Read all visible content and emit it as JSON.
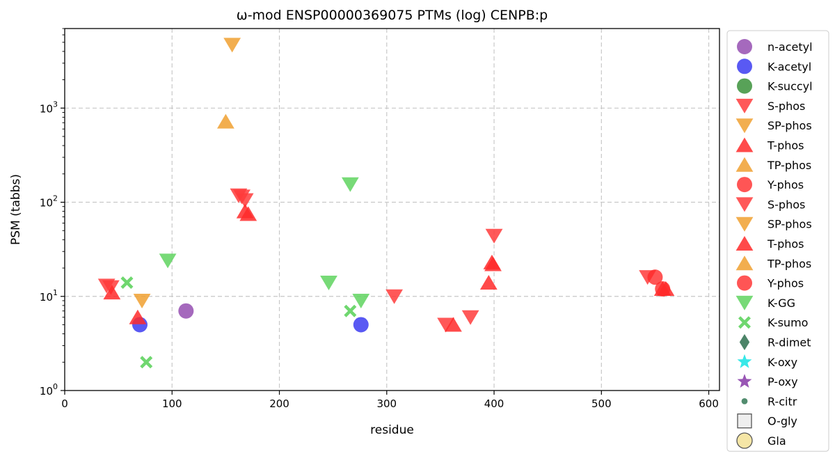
{
  "chart_data": {
    "type": "scatter",
    "title": "ω-mod ENSP00000369075 PTMs (log) CENPB:p",
    "xlabel": "residue",
    "ylabel": "PSM (tabbs)",
    "xlim": [
      0,
      610
    ],
    "ylim": [
      1,
      7000
    ],
    "yscale": "log",
    "grid": true,
    "legend_position": "outside-right",
    "x_ticks": [
      {
        "value": 0,
        "label": "0"
      },
      {
        "value": 100,
        "label": "100"
      },
      {
        "value": 200,
        "label": "200"
      },
      {
        "value": 300,
        "label": "300"
      },
      {
        "value": 400,
        "label": "400"
      },
      {
        "value": 500,
        "label": "500"
      },
      {
        "value": 600,
        "label": "600"
      }
    ],
    "y_ticks": [
      {
        "value": 1,
        "base": "10",
        "exp": "0"
      },
      {
        "value": 10,
        "base": "10",
        "exp": "1"
      },
      {
        "value": 100,
        "base": "10",
        "exp": "2"
      },
      {
        "value": 1000,
        "base": "10",
        "exp": "3"
      }
    ],
    "series": [
      {
        "name": "n-acetyl",
        "marker": "circle",
        "color": "#8e44ad",
        "points": [
          [
            113,
            7
          ]
        ]
      },
      {
        "name": "K-acetyl",
        "marker": "circle",
        "color": "#2f2ff0",
        "points": [
          [
            70,
            5
          ],
          [
            276,
            5
          ]
        ]
      },
      {
        "name": "K-succyl",
        "marker": "circle",
        "color": "#2e8b2e",
        "points": []
      },
      {
        "name": "S-phos",
        "marker": "triangle-down",
        "color": "#ff3b3b",
        "points": [
          [
            39,
            13
          ],
          [
            43,
            12.5
          ],
          [
            162,
            118
          ],
          [
            165,
            115
          ],
          [
            168,
            105
          ],
          [
            307,
            10
          ],
          [
            355,
            5
          ],
          [
            378,
            6
          ],
          [
            400,
            44
          ],
          [
            543,
            16
          ]
        ]
      },
      {
        "name": "SP-phos",
        "marker": "triangle-down",
        "color": "#f0a030",
        "points": [
          [
            72,
            9
          ],
          [
            156,
            4700
          ]
        ]
      },
      {
        "name": "T-phos",
        "marker": "triangle-up",
        "color": "#ff2a2a",
        "points": [
          [
            44,
            11
          ],
          [
            68,
            6
          ],
          [
            168,
            80
          ],
          [
            171,
            75
          ],
          [
            362,
            5
          ],
          [
            395,
            14
          ],
          [
            398,
            23
          ],
          [
            399,
            22
          ],
          [
            557,
            12
          ],
          [
            560,
            12
          ]
        ]
      },
      {
        "name": "TP-phos",
        "marker": "triangle-up",
        "color": "#f0a030",
        "points": [
          [
            150,
            720
          ]
        ]
      },
      {
        "name": "Y-phos",
        "marker": "circle",
        "color": "#ff2a2a",
        "points": [
          [
            550,
            16
          ],
          [
            557,
            12
          ]
        ]
      },
      {
        "name": "S-phos",
        "marker": "triangle-down",
        "color": "#ff3b3b",
        "points": []
      },
      {
        "name": "SP-phos",
        "marker": "triangle-down",
        "color": "#f0a030",
        "points": []
      },
      {
        "name": "T-phos",
        "marker": "triangle-up",
        "color": "#ff2a2a",
        "points": []
      },
      {
        "name": "TP-phos",
        "marker": "triangle-up",
        "color": "#f0a030",
        "points": []
      },
      {
        "name": "Y-phos",
        "marker": "circle",
        "color": "#ff2a2a",
        "points": []
      },
      {
        "name": "K-GG",
        "marker": "triangle-down",
        "color": "#5fd35f",
        "points": [
          [
            96,
            24
          ],
          [
            246,
            14
          ],
          [
            266,
            155
          ],
          [
            276,
            9
          ]
        ]
      },
      {
        "name": "K-sumo",
        "marker": "x",
        "color": "#5fd35f",
        "points": [
          [
            58,
            14
          ],
          [
            76,
            2
          ],
          [
            266,
            7
          ]
        ]
      },
      {
        "name": "R-dimet",
        "marker": "diamond",
        "color": "#2d6e4e",
        "points": []
      },
      {
        "name": "K-oxy",
        "marker": "star",
        "color": "#22e5e5",
        "points": []
      },
      {
        "name": "P-oxy",
        "marker": "star",
        "color": "#8e44ad",
        "points": []
      },
      {
        "name": "R-citr",
        "marker": "small-circle",
        "color": "#3f7f5f",
        "points": []
      },
      {
        "name": "O-gly",
        "marker": "square",
        "color": "#eeeeee",
        "points": []
      },
      {
        "name": "Gla",
        "marker": "circle-outline",
        "color": "#f5e6a6",
        "points": []
      }
    ]
  }
}
